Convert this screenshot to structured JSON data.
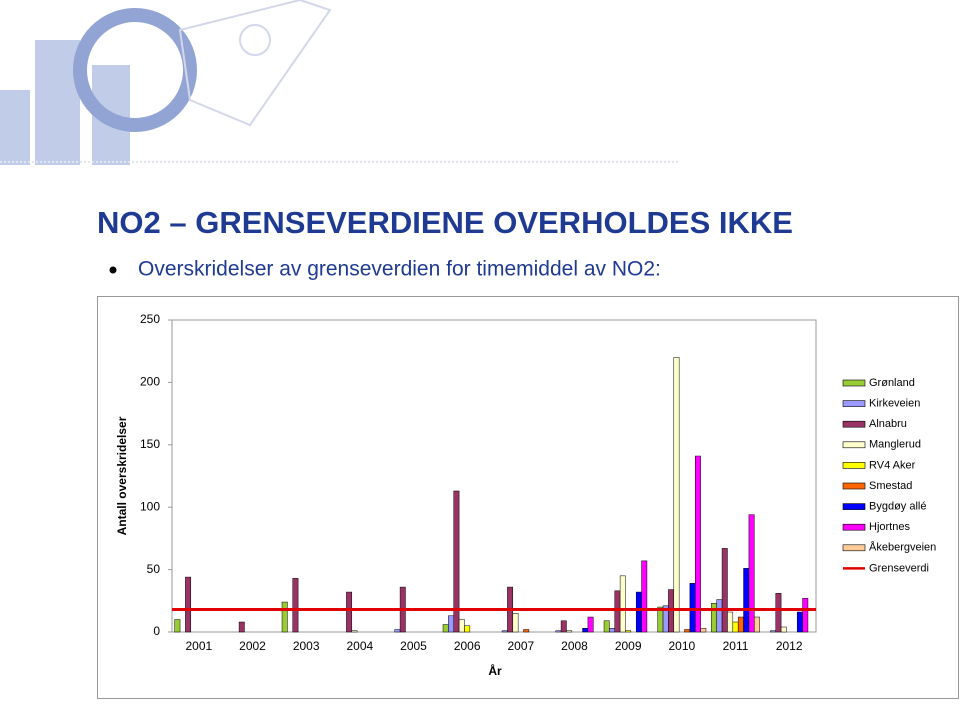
{
  "header": {
    "title": "NO2 – GRENSEVERDIENE OVERHOLDES IKKE",
    "bullet": "Overskridelser av grenseverdien for timemiddel av NO2:"
  },
  "chart_data": {
    "type": "bar",
    "y_label": "Antall overskridelser",
    "x_label": "År",
    "categories": [
      "2001",
      "2002",
      "2003",
      "2004",
      "2005",
      "2006",
      "2007",
      "2008",
      "2009",
      "2010",
      "2011",
      "2012"
    ],
    "ylim": [
      0,
      250
    ],
    "yticks": [
      0,
      50,
      100,
      150,
      200,
      250
    ],
    "series": [
      {
        "name": "Grønland",
        "color": "#99cc33",
        "values": [
          10,
          0,
          24,
          0,
          0,
          6,
          0,
          0,
          9,
          20,
          23,
          0
        ]
      },
      {
        "name": "Kirkeveien",
        "color": "#9999ff",
        "values": [
          0,
          0,
          0,
          0,
          2,
          13,
          1,
          1,
          3,
          21,
          26,
          1
        ]
      },
      {
        "name": "Alnabru",
        "color": "#993366",
        "values": [
          44,
          8,
          43,
          32,
          36,
          113,
          36,
          9,
          33,
          34,
          67,
          31
        ]
      },
      {
        "name": "Manglerud",
        "color": "#ffffcc",
        "values": [
          0,
          0,
          0,
          1,
          0,
          10,
          15,
          1,
          45,
          220,
          16,
          4
        ]
      },
      {
        "name": "RV4 Aker",
        "color": "#ffff00",
        "values": [
          0,
          0,
          0,
          0,
          0,
          5,
          0,
          0,
          1,
          0,
          8,
          0
        ]
      },
      {
        "name": "Smestad",
        "color": "#ff6600",
        "values": [
          0,
          0,
          0,
          0,
          0,
          0,
          2,
          0,
          0,
          2,
          12,
          0
        ]
      },
      {
        "name": "Bygdøy allé",
        "color": "#0000ff",
        "values": [
          0,
          0,
          0,
          0,
          0,
          0,
          0,
          3,
          32,
          39,
          51,
          16
        ]
      },
      {
        "name": "Hjortnes",
        "color": "#ff00ff",
        "values": [
          0,
          0,
          0,
          0,
          0,
          0,
          0,
          12,
          57,
          141,
          94,
          27
        ]
      },
      {
        "name": "Åkebergveien",
        "color": "#ffcc99",
        "values": [
          0,
          0,
          0,
          0,
          0,
          0,
          0,
          0,
          0,
          3,
          12,
          0
        ]
      }
    ],
    "threshold": {
      "name": "Grenseverdi",
      "value": 18,
      "color": "#e00000"
    }
  }
}
